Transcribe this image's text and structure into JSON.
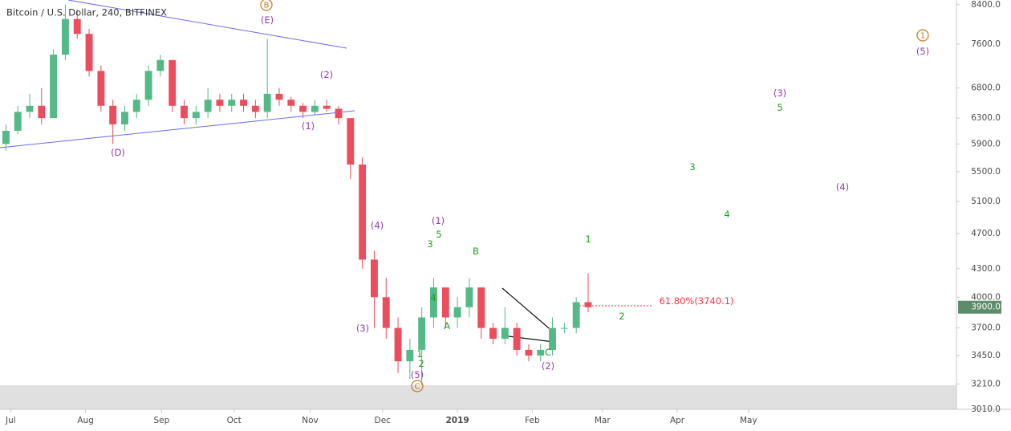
{
  "chart_data": {
    "type": "candlestick",
    "title": "Bitcoin / U.S. Dollar, 240, BITFINEX",
    "log_scale": true,
    "up_color": "#53b987",
    "down_color": "#eb4d5c",
    "categories": [
      null,
      null,
      null,
      null,
      null,
      null,
      null,
      null,
      null,
      null,
      null,
      null,
      null,
      null,
      null,
      null,
      null,
      null,
      null,
      null,
      null,
      null,
      null,
      null,
      null,
      null,
      null,
      null,
      null,
      null,
      null,
      null,
      null,
      null,
      null,
      null,
      null,
      null,
      null,
      null,
      null,
      null,
      null,
      null,
      null,
      null,
      null,
      null,
      null,
      null
    ],
    "open": [
      5900,
      6100,
      6400,
      6500,
      6300,
      7400,
      8100,
      7800,
      7100,
      6500,
      6200,
      6400,
      6600,
      7100,
      7300,
      6500,
      6300,
      6400,
      6600,
      6500,
      6600,
      6500,
      6400,
      6700,
      6600,
      6500,
      6400,
      6500,
      6450,
      6300,
      5600,
      4400,
      4000,
      3700,
      3400,
      3500,
      3800,
      4100,
      3800,
      3900,
      4100,
      3700,
      3600,
      3700,
      3500,
      3450,
      3500,
      3700,
      3700,
      3950
    ],
    "high": [
      6200,
      6500,
      6700,
      6800,
      7500,
      8400,
      8300,
      7900,
      7200,
      6600,
      6500,
      6700,
      7200,
      7400,
      7300,
      6600,
      6500,
      6800,
      6700,
      6700,
      6700,
      6600,
      7700,
      6800,
      6650,
      6550,
      6600,
      6600,
      6500,
      6300,
      5700,
      4500,
      4200,
      3800,
      3600,
      3900,
      4200,
      4100,
      4000,
      4200,
      4100,
      3750,
      3900,
      3750,
      3550,
      3550,
      3800,
      3750,
      4000,
      4250
    ],
    "low": [
      5800,
      6050,
      6300,
      6200,
      6300,
      7300,
      7700,
      7000,
      6400,
      5900,
      6100,
      6300,
      6500,
      7000,
      6400,
      6200,
      6200,
      6300,
      6400,
      6400,
      6400,
      6300,
      6300,
      6500,
      6400,
      6300,
      6350,
      6400,
      6200,
      5400,
      4300,
      3700,
      3600,
      3300,
      3250,
      3200,
      3700,
      3700,
      3700,
      3800,
      3600,
      3550,
      3550,
      3450,
      3400,
      3400,
      3450,
      3650,
      3650,
      3850
    ],
    "close": [
      6100,
      6400,
      6500,
      6300,
      7400,
      8100,
      7800,
      7100,
      6500,
      6200,
      6400,
      6600,
      7100,
      7300,
      6500,
      6300,
      6400,
      6600,
      6500,
      6600,
      6500,
      6400,
      6700,
      6600,
      6500,
      6400,
      6500,
      6450,
      6300,
      5600,
      4400,
      4000,
      3700,
      3400,
      3500,
      3800,
      4100,
      3800,
      3900,
      4100,
      3700,
      3600,
      3700,
      3500,
      3450,
      3500,
      3700,
      3700,
      3950,
      3900
    ],
    "xlim": [
      0,
      80.5
    ],
    "xticks": [
      {
        "value": 0.9,
        "label": "Jul"
      },
      {
        "value": 7.2,
        "label": "Aug"
      },
      {
        "value": 13.6,
        "label": "Sep"
      },
      {
        "value": 19.7,
        "label": "Oct"
      },
      {
        "value": 26.1,
        "label": "Nov"
      },
      {
        "value": 32.2,
        "label": "Dec"
      },
      {
        "value": 38.5,
        "label": "2019"
      },
      {
        "value": 44.8,
        "label": "Feb"
      },
      {
        "value": 50.7,
        "label": "Mar"
      },
      {
        "value": 57.0,
        "label": "Apr"
      },
      {
        "value": 63.0,
        "label": "May"
      }
    ],
    "ylim": [
      3010,
      8500
    ],
    "yticks": [
      {
        "value": 8400,
        "label": "8400.0"
      },
      {
        "value": 7600,
        "label": "7600.0"
      },
      {
        "value": 6800,
        "label": "6800.0"
      },
      {
        "value": 6300,
        "label": "6300.0"
      },
      {
        "value": 5900,
        "label": "5900.0"
      },
      {
        "value": 5500,
        "label": "5500.0"
      },
      {
        "value": 5100,
        "label": "5100.0"
      },
      {
        "value": 4700,
        "label": "4700.0"
      },
      {
        "value": 4300,
        "label": "4300.0"
      },
      {
        "value": 4000,
        "label": "4000.0"
      },
      {
        "value": 3700,
        "label": "3700.0"
      },
      {
        "value": 3450,
        "label": "3450.0"
      },
      {
        "value": 3210,
        "label": "3210.0"
      },
      {
        "value": 3010,
        "label": "3010.0"
      }
    ],
    "last_price": {
      "value": 3900,
      "label": "3900.0"
    },
    "annotations": [
      {
        "text": "B",
        "color": "#c47a1e",
        "circled": true
      },
      {
        "text": "(E)",
        "color": "#8e3fb0"
      },
      {
        "text": "(2)",
        "color": "#8e3fb0"
      },
      {
        "text": "(1)",
        "color": "#8e3fb0"
      },
      {
        "text": "(D)",
        "color": "#8e3fb0"
      },
      {
        "text": "(4)",
        "color": "#8e3fb0"
      },
      {
        "text": "(1)",
        "color": "#8e3fb0"
      },
      {
        "text": "5",
        "color": "#1e9e1e"
      },
      {
        "text": "3",
        "color": "#1e9e1e"
      },
      {
        "text": "B",
        "color": "#1e9e1e"
      },
      {
        "text": "4",
        "color": "#1e9e1e"
      },
      {
        "text": "A",
        "color": "#1e9e1e"
      },
      {
        "text": "1",
        "color": "#1e9e1e"
      },
      {
        "text": "(3)",
        "color": "#8e3fb0"
      },
      {
        "text": "2",
        "color": "#1e9e1e"
      },
      {
        "text": "(5)",
        "color": "#8e3fb0"
      },
      {
        "text": "C",
        "color": "#c47a1e",
        "circled": true
      },
      {
        "text": "C",
        "color": "#1e9e1e"
      },
      {
        "text": "(2)",
        "color": "#8e3fb0"
      },
      {
        "text": "1",
        "color": "#1e9e1e"
      },
      {
        "text": "2",
        "color": "#1e9e1e"
      },
      {
        "text": "3",
        "color": "#1e9e1e"
      },
      {
        "text": "4",
        "color": "#1e9e1e"
      },
      {
        "text": "(3)",
        "color": "#8e3fb0"
      },
      {
        "text": "5",
        "color": "#1e9e1e"
      },
      {
        "text": "(4)",
        "color": "#8e3fb0"
      },
      {
        "text": "1",
        "color": "#c47a1e",
        "circled": true
      },
      {
        "text": "(5)",
        "color": "#8e3fb0"
      },
      {
        "text": "61.80%(3740.1)",
        "color": "#f23645"
      }
    ]
  }
}
